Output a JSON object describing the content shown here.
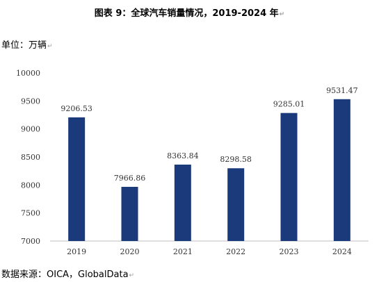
{
  "title": "图表  9：全球汽车销量情况，2019-2024 年",
  "unit_label": "单位：万辆",
  "source": "数据来源：OICA，GlobalData",
  "paragraph_mark": "↵",
  "colors": {
    "bar": "#1b3a7c",
    "axis": "#bfbfbf",
    "text": "#333333"
  },
  "chart_data": {
    "type": "bar",
    "categories": [
      "2019",
      "2020",
      "2021",
      "2022",
      "2023",
      "2024"
    ],
    "values": [
      9206.53,
      7966.86,
      8363.84,
      8298.58,
      9285.01,
      9531.47
    ],
    "value_labels": [
      "9206.53",
      "7966.86",
      "8363.84",
      "8298.58",
      "9285.01",
      "9531.47"
    ],
    "yticks": [
      "7000",
      "7500",
      "8000",
      "8500",
      "9000",
      "9500",
      "10000"
    ],
    "ylim": [
      7000,
      10000
    ],
    "grid": false,
    "legend": "none"
  }
}
